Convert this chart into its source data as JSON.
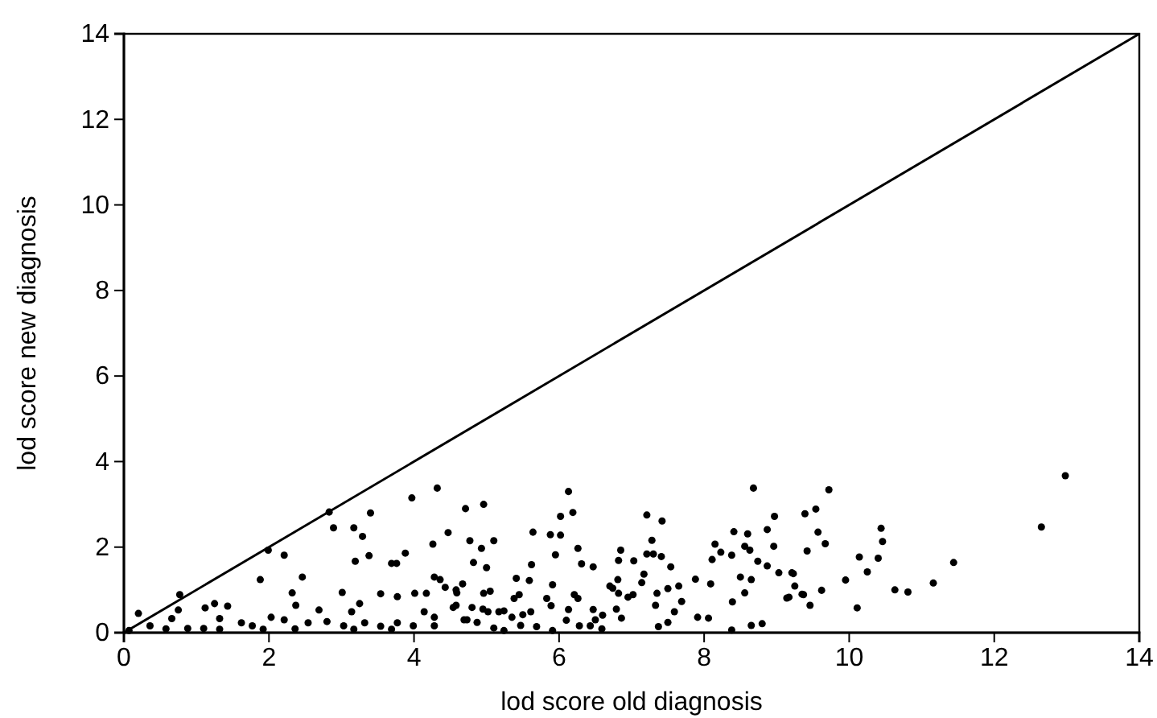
{
  "chart_data": {
    "type": "scatter",
    "xlabel": "lod score old diagnosis",
    "ylabel": "lod score new diagnosis",
    "xlim": [
      0,
      14
    ],
    "ylim": [
      0,
      14
    ],
    "xticks": [
      0,
      2,
      4,
      6,
      8,
      10,
      12,
      14
    ],
    "yticks": [
      0,
      2,
      4,
      6,
      8,
      10,
      12,
      14
    ],
    "grid": false,
    "marker": "circle",
    "series": [
      {
        "color": "#000000",
        "x": [
          12.98,
          12.65,
          11.44,
          11.16,
          10.81,
          10.63,
          10.46,
          10.44,
          10.4,
          10.25,
          10.14,
          10.11,
          9.95,
          9.72,
          9.67,
          9.62,
          9.57,
          9.54,
          9.39,
          9.42,
          9.23,
          9.37,
          9.46,
          9.17,
          8.68,
          8.97,
          8.87,
          8.96,
          8.41,
          8.6,
          8.56,
          8.63,
          8.15,
          8.11,
          8.23,
          8.38,
          8.74,
          8.87,
          8.5,
          8.65,
          9.03,
          9.21,
          9.25,
          9.14,
          9.35,
          8.56,
          8.39,
          8.09,
          7.88,
          7.91,
          8.06,
          8.38,
          8.65,
          8.8,
          7.21,
          7.42,
          7.28,
          7.21,
          7.3,
          7.41,
          7.54,
          6.85,
          7.03,
          6.82,
          7.17,
          7.14,
          6.81,
          6.7,
          6.74,
          7.02,
          6.95,
          6.82,
          7.35,
          7.33,
          7.5,
          7.65,
          7.69,
          7.59,
          7.5,
          7.37,
          6.79,
          6.86,
          6.6,
          6.13,
          6.02,
          6.19,
          5.88,
          6.02,
          6.26,
          5.95,
          6.31,
          6.47,
          5.64,
          5.91,
          6.21,
          6.26,
          6.13,
          6.47,
          6.5,
          6.28,
          6.43,
          6.1,
          6.59,
          4.96,
          4.71,
          4.77,
          5.1,
          4.93,
          4.82,
          5.0,
          4.67,
          4.59,
          5.05,
          4.96,
          5.41,
          5.59,
          5.62,
          5.45,
          5.38,
          5.83,
          5.89,
          4.8,
          4.95,
          5.02,
          5.17,
          5.24,
          5.35,
          5.5,
          5.61,
          4.58,
          4.73,
          4.87,
          5.1,
          5.47,
          5.69,
          5.91,
          5.24,
          4.32,
          3.97,
          3.4,
          2.83,
          2.89,
          3.17,
          3.29,
          4.47,
          4.26,
          3.88,
          3.69,
          3.76,
          3.38,
          3.19,
          2.21,
          1.99,
          2.46,
          1.88,
          4.28,
          4.36,
          4.17,
          4.43,
          4.58,
          4.01,
          3.54,
          3.77,
          3.01,
          2.32,
          2.37,
          2.69,
          3.25,
          3.14,
          4.14,
          4.28,
          4.54,
          4.69,
          0.77,
          0.75,
          0.2,
          1.12,
          1.25,
          1.43,
          1.32,
          0.66,
          0.36,
          0.88,
          1.1,
          1.62,
          1.77,
          2.03,
          2.21,
          2.54,
          2.8,
          3.03,
          3.32,
          3.54,
          3.77,
          3.99,
          4.28,
          0.07,
          0.58,
          1.32,
          1.92,
          2.36,
          3.17,
          3.69
        ],
        "values": [
          3.67,
          2.47,
          1.64,
          1.16,
          0.95,
          1.0,
          2.13,
          2.44,
          1.74,
          1.42,
          1.77,
          0.58,
          1.23,
          3.34,
          2.08,
          0.99,
          2.35,
          2.89,
          2.78,
          1.91,
          1.38,
          0.89,
          0.64,
          0.83,
          3.38,
          2.72,
          2.41,
          2.02,
          2.36,
          2.31,
          2.02,
          1.93,
          2.07,
          1.71,
          1.88,
          1.81,
          1.67,
          1.56,
          1.3,
          1.24,
          1.4,
          1.4,
          1.09,
          0.81,
          0.9,
          0.93,
          0.72,
          1.14,
          1.25,
          0.36,
          0.34,
          0.06,
          0.17,
          0.21,
          2.75,
          2.61,
          2.16,
          1.84,
          1.84,
          1.78,
          1.54,
          1.93,
          1.68,
          1.69,
          1.37,
          1.17,
          1.24,
          1.09,
          1.04,
          0.89,
          0.83,
          0.92,
          0.92,
          0.64,
          1.03,
          1.09,
          0.73,
          0.49,
          0.24,
          0.14,
          0.55,
          0.34,
          0.41,
          3.3,
          2.72,
          2.81,
          2.29,
          2.28,
          1.97,
          1.82,
          1.61,
          1.54,
          2.35,
          1.12,
          0.89,
          0.8,
          0.54,
          0.54,
          0.3,
          0.16,
          0.16,
          0.29,
          0.09,
          3.0,
          2.9,
          2.15,
          2.15,
          1.97,
          1.64,
          1.52,
          1.14,
          0.93,
          0.97,
          0.92,
          1.27,
          1.22,
          1.59,
          0.89,
          0.8,
          0.8,
          0.63,
          0.59,
          0.55,
          0.49,
          0.49,
          0.51,
          0.36,
          0.42,
          0.49,
          0.64,
          0.3,
          0.24,
          0.11,
          0.17,
          0.14,
          0.05,
          0.05,
          3.38,
          3.15,
          2.8,
          2.82,
          2.45,
          2.45,
          2.25,
          2.34,
          2.07,
          1.86,
          1.62,
          1.62,
          1.8,
          1.67,
          1.81,
          1.93,
          1.3,
          1.24,
          1.3,
          1.24,
          0.92,
          1.06,
          1.0,
          0.92,
          0.91,
          0.84,
          0.94,
          0.93,
          0.64,
          0.53,
          0.68,
          0.49,
          0.49,
          0.36,
          0.59,
          0.3,
          0.89,
          0.53,
          0.45,
          0.58,
          0.68,
          0.62,
          0.33,
          0.33,
          0.16,
          0.1,
          0.1,
          0.23,
          0.16,
          0.36,
          0.3,
          0.23,
          0.26,
          0.16,
          0.23,
          0.15,
          0.23,
          0.16,
          0.16,
          0.05,
          0.09,
          0.08,
          0.08,
          0.09,
          0.08,
          0.08
        ]
      },
      {
        "type": "line",
        "color": "#000000",
        "marker": "none",
        "line_style": "solid",
        "x": [
          0,
          14
        ],
        "values": [
          0,
          14
        ]
      }
    ]
  }
}
